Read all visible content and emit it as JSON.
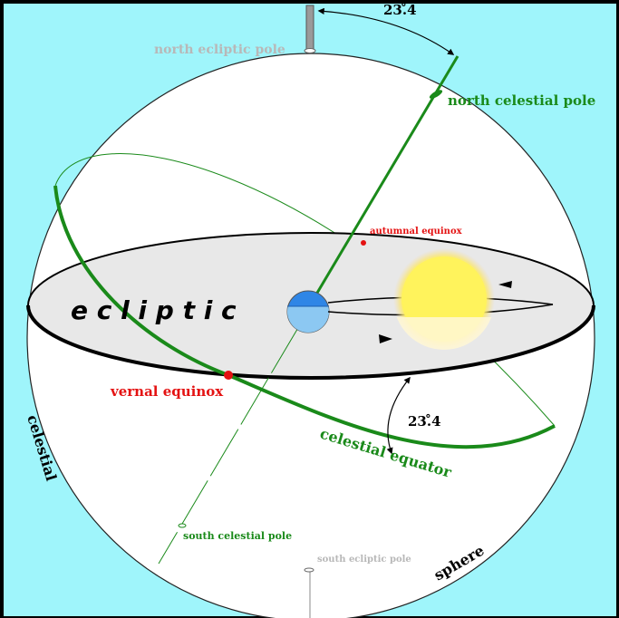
{
  "colors": {
    "background": "#9ff5fb",
    "sphere": "#ffffff",
    "ecliptic_plane": "#e8e8e8",
    "celestial_green": "#1a8a1a",
    "equinox_red": "#e41212",
    "ecliptic_pole_gray": "#b8b8b8",
    "earth_blue": "#2f86e6",
    "sun_yellow": "#fff35c"
  },
  "labels": {
    "tilt_top": "23.̊4",
    "north_ecliptic_pole": "north ecliptic pole",
    "north_celestial_pole": "north celestial pole",
    "autumnal_equinox": "autumnal equinox",
    "ecliptic": "e c l i p t i c",
    "vernal_equinox": "vernal equinox",
    "tilt_equator": "23.̊4",
    "celestial_equator": "celestial equator",
    "celestial": "celestial",
    "sphere": "sphere",
    "south_celestial_pole": "south celestial pole",
    "south_ecliptic_pole": "south ecliptic pole"
  }
}
